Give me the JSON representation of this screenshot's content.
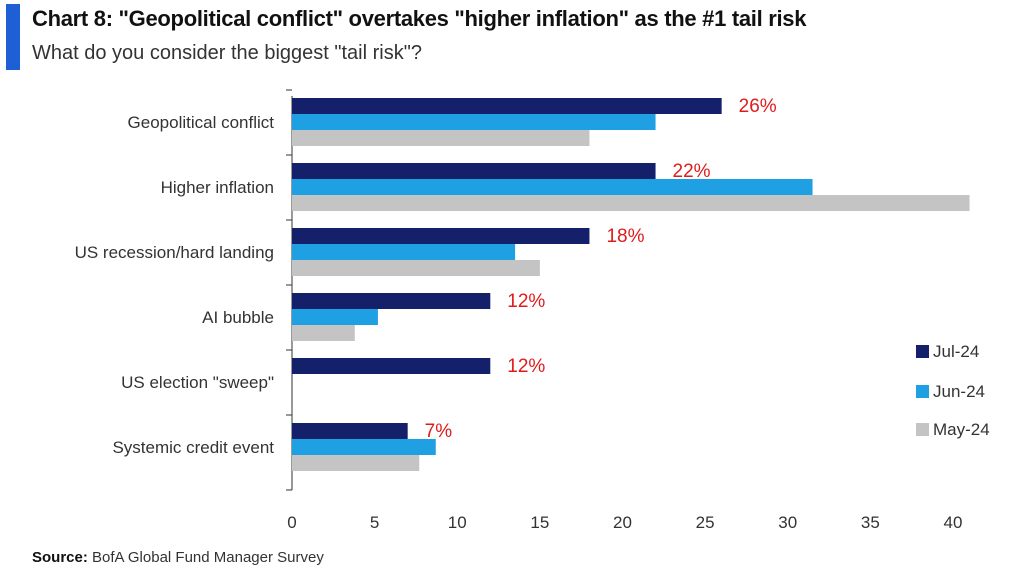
{
  "title": "Chart 8: \"Geopolitical conflict\" overtakes \"higher inflation\" as the #1 tail risk",
  "subtitle": "What do you consider the biggest \"tail risk\"?",
  "source_label": "Source:",
  "source_text": "BofA Global Fund Manager Survey",
  "colors": {
    "jul": "#14216a",
    "jun": "#1ea0e2",
    "may": "#c4c4c4",
    "label": "#e01b1b",
    "accent": "#1f5fd6"
  },
  "chart_data": {
    "type": "bar",
    "orientation": "horizontal",
    "categories": [
      "Geopolitical conflict",
      "Higher inflation",
      "US recession/hard landing",
      "AI bubble",
      "US election \"sweep\"",
      "Systemic credit event"
    ],
    "series": [
      {
        "name": "Jul-24",
        "values": [
          26,
          22,
          18,
          12,
          12,
          7
        ]
      },
      {
        "name": "Jun-24",
        "values": [
          22,
          31.5,
          13.5,
          5.2,
          null,
          8.7
        ]
      },
      {
        "name": "May-24",
        "values": [
          18,
          41,
          15,
          3.8,
          null,
          7.7
        ]
      }
    ],
    "data_labels": [
      "26%",
      "22%",
      "18%",
      "12%",
      "12%",
      "7%"
    ],
    "xlim": [
      0,
      40
    ],
    "xticks": [
      0,
      5,
      10,
      15,
      20,
      25,
      30,
      35,
      40
    ],
    "legend_position": "right"
  }
}
